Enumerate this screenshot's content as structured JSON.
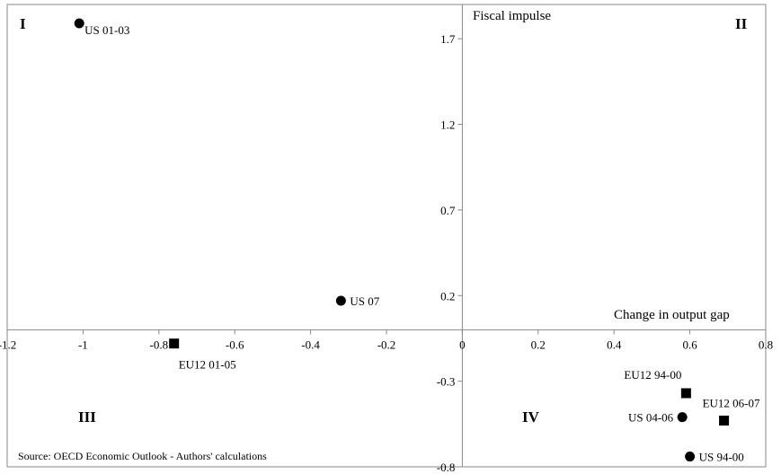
{
  "chart_data": {
    "type": "scatter",
    "title": "",
    "xlabel": "Change in output gap",
    "ylabel": "Fiscal impulse",
    "xlim": [
      -1.2,
      0.8
    ],
    "ylim": [
      -0.8,
      1.9
    ],
    "x_ticks": [
      "-1.2",
      "-1",
      "-0.8",
      "-0.6",
      "-0.4",
      "-0.2",
      "0",
      "0.2",
      "0.4",
      "0.6",
      "0.8"
    ],
    "y_ticks": [
      "1.7",
      "1.2",
      "0.7",
      "0.2",
      "-0.3",
      "-0.8"
    ],
    "quadrants": [
      "I",
      "II",
      "III",
      "IV"
    ],
    "source": "Source: OECD Economic Outlook - Authors' calculations",
    "grid": false,
    "series": [
      {
        "marker": "circle",
        "points": [
          {
            "label": "US 01-03",
            "x": -1.01,
            "y": 1.79
          },
          {
            "label": "US 07",
            "x": -0.32,
            "y": 0.17
          },
          {
            "label": "US 04-06",
            "x": 0.58,
            "y": -0.51
          },
          {
            "label": "US 94-00",
            "x": 0.6,
            "y": -0.74
          }
        ]
      },
      {
        "marker": "square",
        "points": [
          {
            "label": "EU12 01-05",
            "x": -0.76,
            "y": -0.08
          },
          {
            "label": "EU12 94-00",
            "x": 0.59,
            "y": -0.37
          },
          {
            "label": "EU12 06-07",
            "x": 0.69,
            "y": -0.53
          }
        ]
      }
    ]
  }
}
